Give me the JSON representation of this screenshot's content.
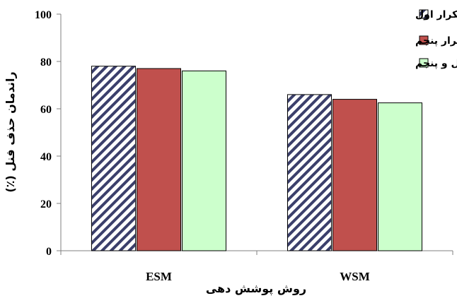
{
  "chart_data": {
    "type": "bar",
    "categories": [
      "ESM",
      "WSM"
    ],
    "series": [
      {
        "name": "تکرار اول",
        "values": [
          78,
          66
        ],
        "color": "#ffffff",
        "pattern": "diagonal-hatch",
        "hatch_color": "#3b3f6b"
      },
      {
        "name": "تکرار پنجم",
        "values": [
          77,
          64
        ],
        "color": "#c0504d"
      },
      {
        "name": "تکرار چهل و پنجم",
        "values": [
          76,
          62.5
        ],
        "color": "#ccffcc"
      }
    ],
    "xlabel": "روش پوشش دهی",
    "ylabel": "راندمان حذف فنل (٪)",
    "ylim": [
      0,
      100
    ],
    "yticks": [
      0,
      20,
      40,
      60,
      80,
      100
    ],
    "grid": false,
    "legend_position": "top-right"
  }
}
